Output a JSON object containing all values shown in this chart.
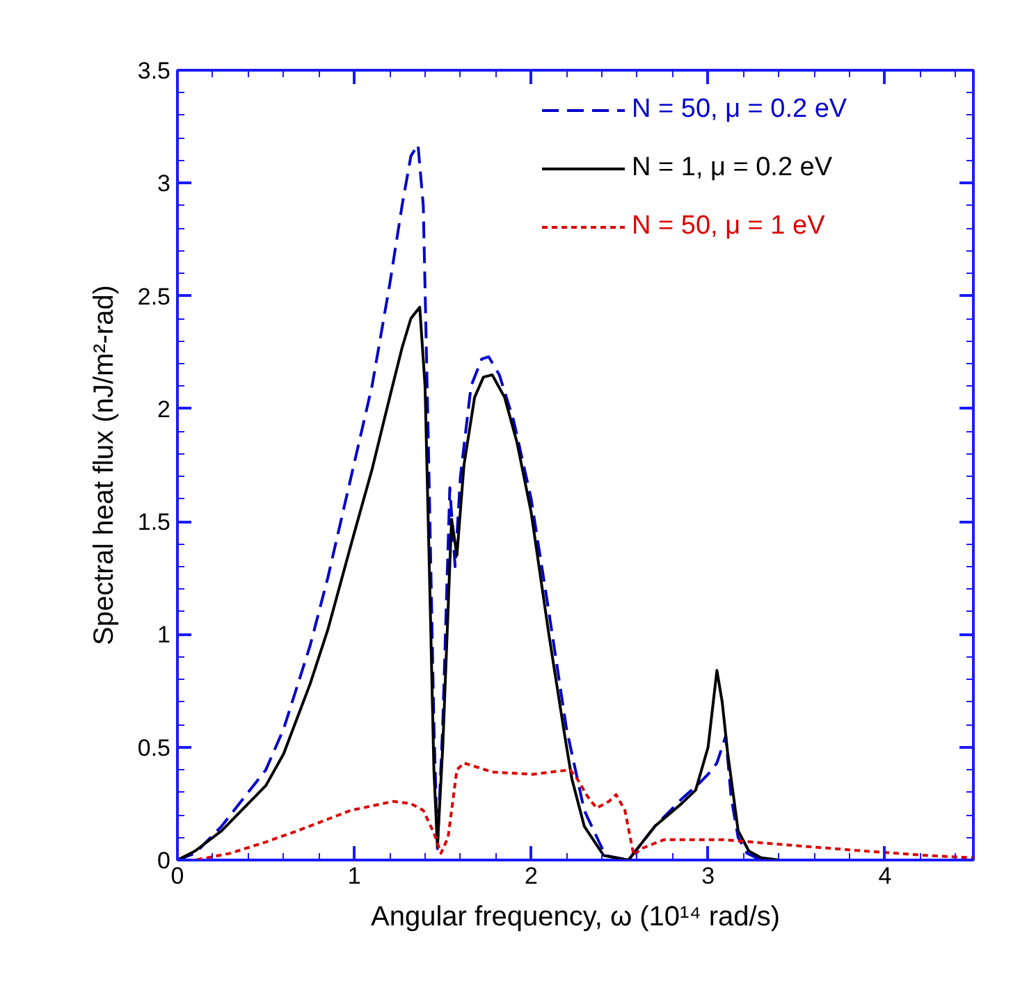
{
  "chart_data": {
    "type": "line",
    "xlabel": "Angular frequency, ω (10¹⁴ rad/s)",
    "ylabel": "Spectral heat flux (nJ/m²-rad)",
    "xlim": [
      0,
      4.5
    ],
    "ylim": [
      0,
      3.5
    ],
    "xticks": [
      0,
      1,
      2,
      3,
      4
    ],
    "yticks": [
      0,
      0.5,
      1,
      1.5,
      2,
      2.5,
      3,
      3.5
    ],
    "grid": false,
    "legend": "top right",
    "series": [
      {
        "name": "N = 50, μ = 0.2 eV",
        "color": "#0000cc",
        "line_style": "dashed",
        "x": [
          0,
          0.1,
          0.25,
          0.35,
          0.5,
          0.6,
          0.75,
          0.85,
          1.0,
          1.1,
          1.2,
          1.27,
          1.32,
          1.36,
          1.39,
          1.42,
          1.45,
          1.47,
          1.5,
          1.54,
          1.57,
          1.6,
          1.66,
          1.72,
          1.76,
          1.82,
          1.9,
          2.0,
          2.1,
          2.2,
          2.3,
          2.42,
          2.55,
          2.7,
          2.85,
          2.95,
          3.0,
          3.05,
          3.1,
          3.13,
          3.17,
          3.22,
          3.3,
          3.4
        ],
        "values": [
          0,
          0.03,
          0.15,
          0.25,
          0.4,
          0.58,
          0.95,
          1.25,
          1.76,
          2.1,
          2.55,
          2.9,
          3.12,
          3.17,
          2.9,
          1.8,
          0.6,
          0.05,
          0.6,
          1.65,
          1.3,
          1.7,
          2.1,
          2.22,
          2.23,
          2.15,
          1.95,
          1.6,
          1.1,
          0.58,
          0.22,
          0.02,
          0,
          0.15,
          0.27,
          0.34,
          0.38,
          0.43,
          0.55,
          0.28,
          0.1,
          0.03,
          0,
          0
        ]
      },
      {
        "name": "N = 1, μ = 0.2 eV",
        "color": "#000000",
        "line_style": "solid",
        "x": [
          0,
          0.1,
          0.25,
          0.35,
          0.5,
          0.6,
          0.75,
          0.85,
          1.0,
          1.1,
          1.2,
          1.27,
          1.32,
          1.37,
          1.4,
          1.43,
          1.45,
          1.47,
          1.5,
          1.55,
          1.58,
          1.62,
          1.68,
          1.73,
          1.78,
          1.85,
          1.92,
          2.0,
          2.1,
          2.19,
          2.23,
          2.3,
          2.41,
          2.55,
          2.7,
          2.85,
          2.93,
          3.0,
          3.05,
          3.08,
          3.11,
          3.17,
          3.23,
          3.3,
          3.4
        ],
        "values": [
          0,
          0.04,
          0.13,
          0.21,
          0.33,
          0.47,
          0.78,
          1.02,
          1.45,
          1.73,
          2.05,
          2.27,
          2.4,
          2.45,
          2.1,
          1.1,
          0.4,
          0.06,
          0.5,
          1.51,
          1.35,
          1.75,
          2.05,
          2.14,
          2.15,
          2.05,
          1.85,
          1.54,
          1.0,
          0.55,
          0.36,
          0.15,
          0.02,
          0,
          0.15,
          0.25,
          0.31,
          0.5,
          0.84,
          0.7,
          0.48,
          0.13,
          0.04,
          0.01,
          0
        ]
      },
      {
        "name": "N = 50, μ = 1 eV",
        "color": "#dd0000",
        "line_style": "dotted",
        "x": [
          0,
          0.1,
          0.3,
          0.5,
          0.68,
          0.98,
          1.22,
          1.32,
          1.39,
          1.45,
          1.49,
          1.53,
          1.58,
          1.62,
          1.78,
          2.01,
          2.22,
          2.26,
          2.32,
          2.37,
          2.44,
          2.48,
          2.53,
          2.58,
          2.62,
          2.75,
          3.09,
          3.4,
          3.88,
          4.24,
          4.5
        ],
        "values": [
          0,
          0,
          0.03,
          0.08,
          0.13,
          0.22,
          0.26,
          0.25,
          0.22,
          0.12,
          0.03,
          0.1,
          0.4,
          0.43,
          0.39,
          0.38,
          0.4,
          0.36,
          0.28,
          0.23,
          0.26,
          0.29,
          0.22,
          0.02,
          0.05,
          0.09,
          0.09,
          0.07,
          0.04,
          0.02,
          0.01
        ]
      }
    ]
  }
}
